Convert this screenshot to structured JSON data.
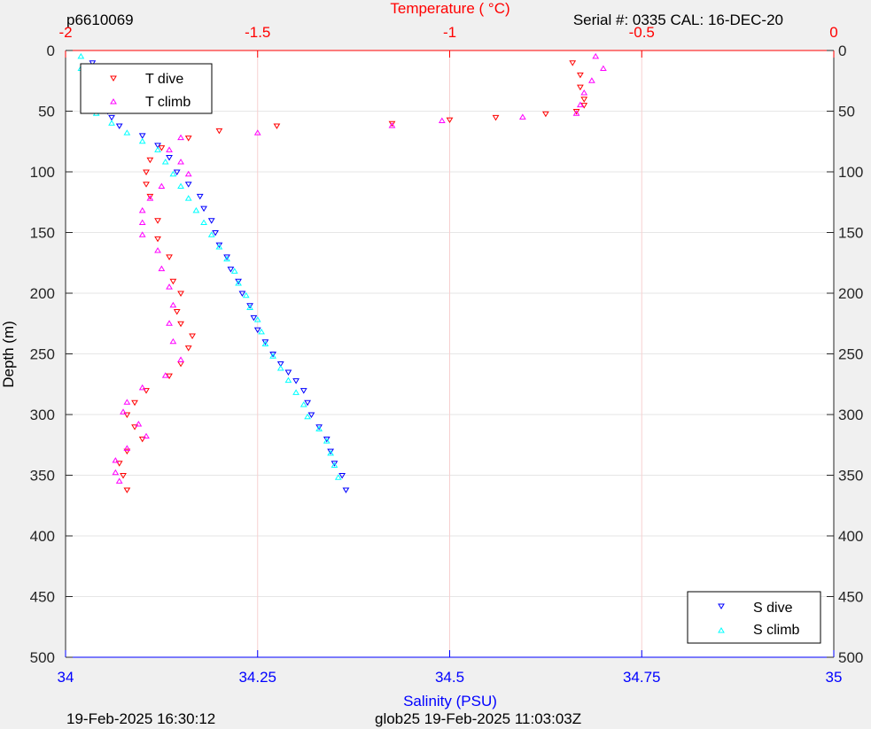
{
  "header": {
    "profile_id": "p6610069",
    "serial": "Serial #: 0335  CAL: 16-DEC-20"
  },
  "footer": {
    "plot_time": "19-Feb-2025 16:30:12",
    "mission_time": "glob25 19-Feb-2025 11:03:03Z"
  },
  "colors": {
    "temperature_axis": "#ff0000",
    "salinity_axis": "#0000ff",
    "t_dive": "#ff0000",
    "t_climb": "#ff00ff",
    "s_dive": "#0000ff",
    "s_climb": "#00ffff"
  },
  "chart_data": {
    "type": "scatter",
    "title": "",
    "top_axis": {
      "label": "Temperature (    °C)",
      "range": [
        -2,
        0
      ],
      "ticks": [
        -2,
        -1.5,
        -1,
        -0.5,
        0
      ],
      "tick_labels": [
        "-2",
        "-1.5",
        "-1",
        "-0.5",
        "0"
      ]
    },
    "bottom_axis": {
      "label": "Salinity (PSU)",
      "range": [
        34,
        35
      ],
      "ticks": [
        34,
        34.25,
        34.5,
        34.75,
        35
      ],
      "tick_labels": [
        "34",
        "34.25",
        "34.5",
        "34.75",
        "35"
      ]
    },
    "y_axis": {
      "label": "Depth (m)",
      "range": [
        0,
        500
      ],
      "reversed": true,
      "ticks": [
        0,
        50,
        100,
        150,
        200,
        250,
        300,
        350,
        400,
        450,
        500
      ],
      "tick_labels": [
        "0",
        "50",
        "100",
        "150",
        "200",
        "250",
        "300",
        "350",
        "400",
        "450",
        "500"
      ]
    },
    "grid": true,
    "legends": [
      {
        "placement": "top-left",
        "entries": [
          "T dive",
          "T climb"
        ]
      },
      {
        "placement": "bottom-right",
        "entries": [
          "S dive",
          "S climb"
        ]
      }
    ],
    "series": [
      {
        "name": "T dive",
        "axis": "temperature",
        "marker": "triangle-down",
        "points": [
          [
            -0.68,
            10
          ],
          [
            -0.66,
            20
          ],
          [
            -0.66,
            30
          ],
          [
            -0.65,
            40
          ],
          [
            -0.65,
            45
          ],
          [
            -0.67,
            50
          ],
          [
            -0.75,
            52
          ],
          [
            -0.88,
            55
          ],
          [
            -1.0,
            57
          ],
          [
            -1.15,
            60
          ],
          [
            -1.45,
            62
          ],
          [
            -1.6,
            66
          ],
          [
            -1.68,
            72
          ],
          [
            -1.75,
            80
          ],
          [
            -1.78,
            90
          ],
          [
            -1.79,
            100
          ],
          [
            -1.79,
            110
          ],
          [
            -1.78,
            120
          ],
          [
            -1.76,
            140
          ],
          [
            -1.76,
            155
          ],
          [
            -1.73,
            170
          ],
          [
            -1.72,
            190
          ],
          [
            -1.7,
            200
          ],
          [
            -1.71,
            215
          ],
          [
            -1.7,
            225
          ],
          [
            -1.67,
            235
          ],
          [
            -1.68,
            245
          ],
          [
            -1.7,
            258
          ],
          [
            -1.73,
            268
          ],
          [
            -1.79,
            280
          ],
          [
            -1.82,
            290
          ],
          [
            -1.84,
            300
          ],
          [
            -1.82,
            310
          ],
          [
            -1.8,
            320
          ],
          [
            -1.84,
            330
          ],
          [
            -1.86,
            340
          ],
          [
            -1.85,
            350
          ],
          [
            -1.84,
            362
          ]
        ]
      },
      {
        "name": "T climb",
        "axis": "temperature",
        "marker": "triangle-up",
        "points": [
          [
            -0.62,
            5
          ],
          [
            -0.6,
            15
          ],
          [
            -0.63,
            25
          ],
          [
            -0.65,
            35
          ],
          [
            -0.66,
            45
          ],
          [
            -0.67,
            52
          ],
          [
            -0.81,
            55
          ],
          [
            -1.02,
            58
          ],
          [
            -1.15,
            62
          ],
          [
            -1.5,
            68
          ],
          [
            -1.7,
            72
          ],
          [
            -1.73,
            82
          ],
          [
            -1.7,
            92
          ],
          [
            -1.68,
            102
          ],
          [
            -1.75,
            112
          ],
          [
            -1.78,
            122
          ],
          [
            -1.8,
            132
          ],
          [
            -1.8,
            142
          ],
          [
            -1.8,
            152
          ],
          [
            -1.76,
            165
          ],
          [
            -1.75,
            180
          ],
          [
            -1.73,
            195
          ],
          [
            -1.72,
            210
          ],
          [
            -1.73,
            225
          ],
          [
            -1.72,
            240
          ],
          [
            -1.7,
            255
          ],
          [
            -1.74,
            268
          ],
          [
            -1.8,
            278
          ],
          [
            -1.84,
            290
          ],
          [
            -1.85,
            298
          ],
          [
            -1.81,
            308
          ],
          [
            -1.79,
            318
          ],
          [
            -1.84,
            328
          ],
          [
            -1.87,
            338
          ],
          [
            -1.87,
            348
          ],
          [
            -1.86,
            355
          ]
        ]
      },
      {
        "name": "S dive",
        "axis": "salinity",
        "marker": "triangle-down",
        "points": [
          [
            34.035,
            10
          ],
          [
            34.04,
            20
          ],
          [
            34.045,
            30
          ],
          [
            34.05,
            40
          ],
          [
            34.055,
            50
          ],
          [
            34.06,
            55
          ],
          [
            34.07,
            62
          ],
          [
            34.1,
            70
          ],
          [
            34.12,
            78
          ],
          [
            34.135,
            88
          ],
          [
            34.145,
            100
          ],
          [
            34.16,
            110
          ],
          [
            34.175,
            120
          ],
          [
            34.18,
            130
          ],
          [
            34.19,
            140
          ],
          [
            34.195,
            150
          ],
          [
            34.2,
            160
          ],
          [
            34.21,
            170
          ],
          [
            34.215,
            180
          ],
          [
            34.225,
            190
          ],
          [
            34.23,
            200
          ],
          [
            34.24,
            210
          ],
          [
            34.245,
            220
          ],
          [
            34.25,
            230
          ],
          [
            34.26,
            240
          ],
          [
            34.27,
            250
          ],
          [
            34.28,
            258
          ],
          [
            34.29,
            265
          ],
          [
            34.3,
            272
          ],
          [
            34.31,
            280
          ],
          [
            34.315,
            290
          ],
          [
            34.32,
            300
          ],
          [
            34.33,
            310
          ],
          [
            34.34,
            320
          ],
          [
            34.345,
            330
          ],
          [
            34.35,
            340
          ],
          [
            34.36,
            350
          ],
          [
            34.365,
            362
          ]
        ]
      },
      {
        "name": "S climb",
        "axis": "salinity",
        "marker": "triangle-up",
        "points": [
          [
            34.02,
            5
          ],
          [
            34.02,
            15
          ],
          [
            34.025,
            25
          ],
          [
            34.03,
            35
          ],
          [
            34.035,
            45
          ],
          [
            34.04,
            52
          ],
          [
            34.06,
            60
          ],
          [
            34.08,
            68
          ],
          [
            34.1,
            75
          ],
          [
            34.12,
            82
          ],
          [
            34.13,
            92
          ],
          [
            34.14,
            102
          ],
          [
            34.15,
            112
          ],
          [
            34.16,
            122
          ],
          [
            34.17,
            132
          ],
          [
            34.18,
            142
          ],
          [
            34.19,
            152
          ],
          [
            34.2,
            162
          ],
          [
            34.21,
            172
          ],
          [
            34.22,
            182
          ],
          [
            34.225,
            192
          ],
          [
            34.235,
            202
          ],
          [
            34.24,
            212
          ],
          [
            34.25,
            222
          ],
          [
            34.255,
            232
          ],
          [
            34.26,
            242
          ],
          [
            34.27,
            252
          ],
          [
            34.28,
            262
          ],
          [
            34.29,
            272
          ],
          [
            34.3,
            282
          ],
          [
            34.31,
            292
          ],
          [
            34.315,
            302
          ],
          [
            34.33,
            312
          ],
          [
            34.34,
            322
          ],
          [
            34.345,
            332
          ],
          [
            34.35,
            342
          ],
          [
            34.355,
            352
          ]
        ]
      }
    ]
  }
}
